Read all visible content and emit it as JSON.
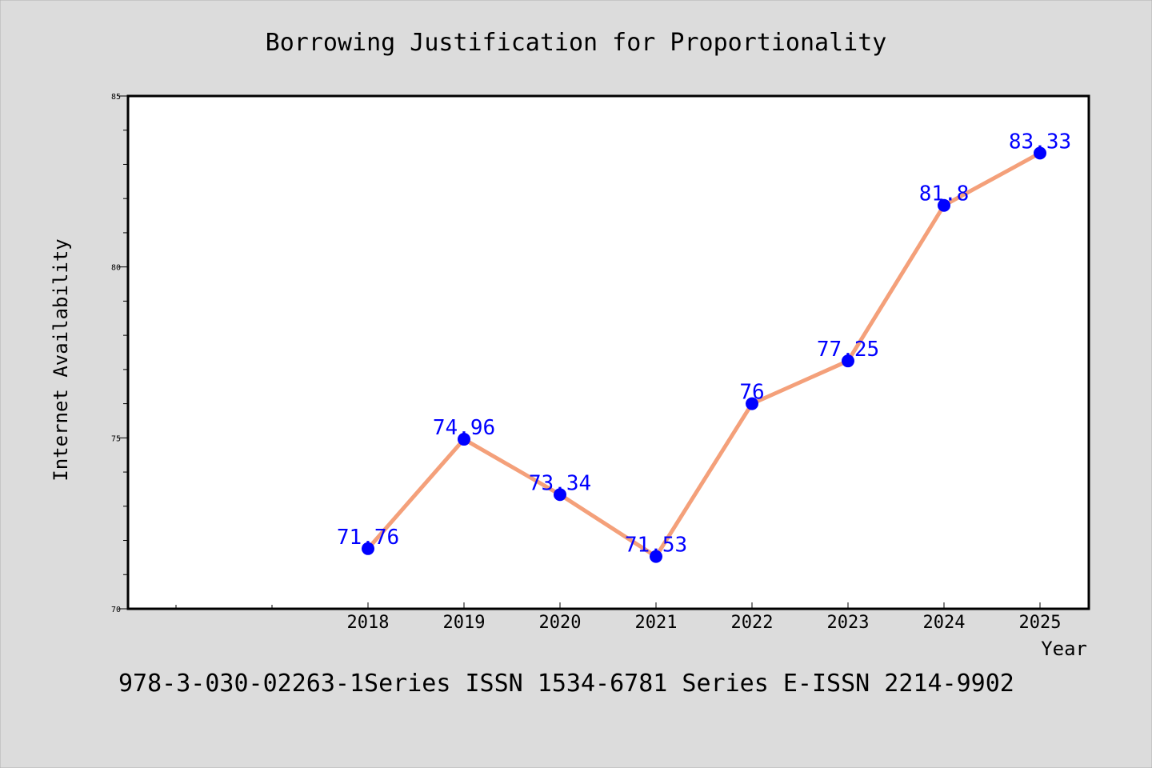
{
  "colors": {
    "background": "#dcdcdc",
    "plot_background": "#ffffff",
    "line": "#f4a07a",
    "marker": "#0000ff",
    "data_label": "#0000ff",
    "text": "#000000"
  },
  "footer": "978-3-030-02263-1Series ISSN 1534-6781 Series E-ISSN 2214-9902",
  "chart_data": {
    "type": "line",
    "title": "Borrowing Justification for Proportionality",
    "xlabel": "Year",
    "ylabel": "Internet Availability",
    "categories": [
      "2018",
      "2019",
      "2020",
      "2021",
      "2022",
      "2023",
      "2024",
      "2025"
    ],
    "series": [
      {
        "values": [
          71.76,
          74.96,
          73.34,
          71.53,
          76,
          77.25,
          81.8,
          83.33
        ],
        "labels": [
          "71.76",
          "74.96",
          "73.34",
          "71.53",
          "76",
          "77.25",
          "81.8",
          "83.33"
        ]
      }
    ],
    "ylim": [
      70,
      85
    ],
    "yticks": [
      "70",
      "75",
      "80",
      "85"
    ],
    "grid": false,
    "legend": "none"
  }
}
